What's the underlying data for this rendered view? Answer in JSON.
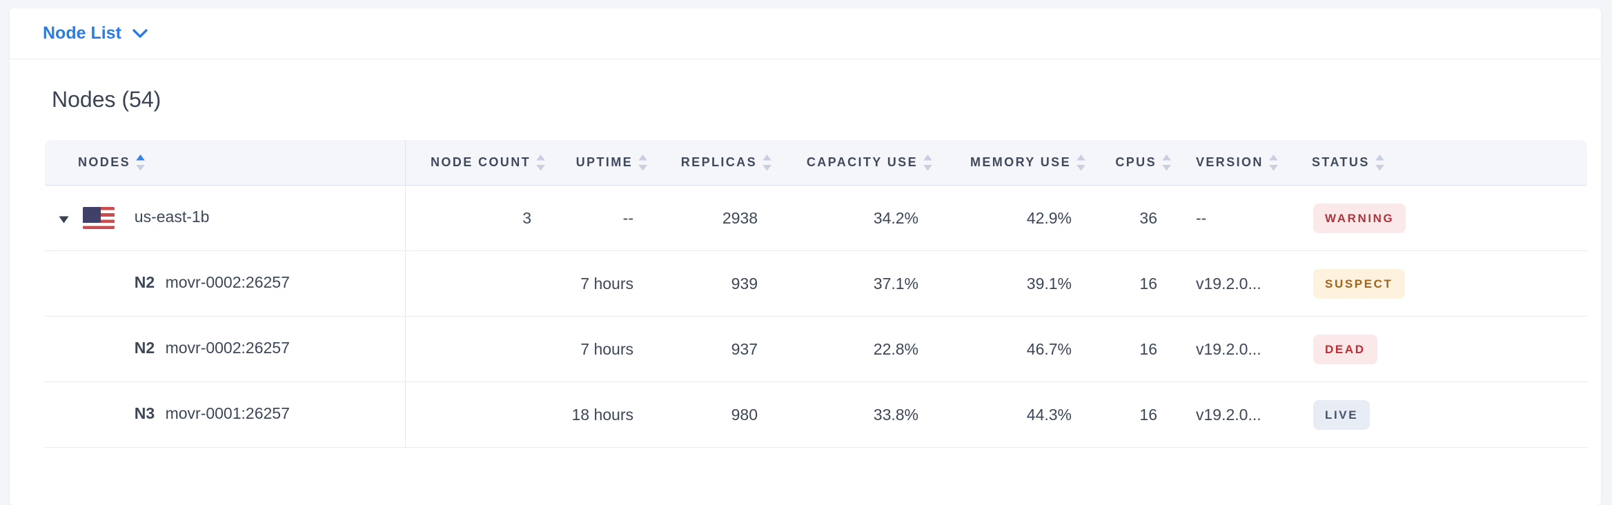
{
  "page": {
    "background": "#f3f5f9",
    "accent_blue": "#2b7ce2"
  },
  "topbar": {
    "view_selector_label": "Node List"
  },
  "main": {
    "heading": "Nodes (54)"
  },
  "table": {
    "columns": [
      {
        "key": "nodes",
        "label": "NODES",
        "align": "left",
        "sort_active": true
      },
      {
        "key": "node_count",
        "label": "NODE COUNT",
        "align": "right",
        "sort_active": false
      },
      {
        "key": "uptime",
        "label": "UPTIME",
        "align": "right",
        "sort_active": false
      },
      {
        "key": "replicas",
        "label": "REPLICAS",
        "align": "right",
        "sort_active": false
      },
      {
        "key": "capacity_use",
        "label": "CAPACITY USE",
        "align": "right",
        "sort_active": false
      },
      {
        "key": "memory_use",
        "label": "MEMORY USE",
        "align": "right",
        "sort_active": false
      },
      {
        "key": "cpus",
        "label": "CPUS",
        "align": "right",
        "sort_active": false
      },
      {
        "key": "version",
        "label": "VERSION",
        "align": "left",
        "sort_active": false
      },
      {
        "key": "status",
        "label": "STATUS",
        "align": "left",
        "sort_active": false
      }
    ],
    "rows": [
      {
        "type": "region",
        "id": "",
        "name": "us-east-1b",
        "flag": "us-flag",
        "node_count": "3",
        "uptime": "--",
        "replicas": "2938",
        "capacity_use": "34.2%",
        "memory_use": "42.9%",
        "cpus": "36",
        "version": "--",
        "status": {
          "label": "WARNING",
          "variant": "warning"
        }
      },
      {
        "type": "node",
        "id": "N2",
        "name": "movr-0002:26257",
        "flag": "",
        "node_count": "",
        "uptime": "7 hours",
        "replicas": "939",
        "capacity_use": "37.1%",
        "memory_use": "39.1%",
        "cpus": "16",
        "version": "v19.2.0...",
        "status": {
          "label": "SUSPECT",
          "variant": "suspect"
        }
      },
      {
        "type": "node",
        "id": "N2",
        "name": "movr-0002:26257",
        "flag": "",
        "node_count": "",
        "uptime": "7 hours",
        "replicas": "937",
        "capacity_use": "22.8%",
        "memory_use": "46.7%",
        "cpus": "16",
        "version": "v19.2.0...",
        "status": {
          "label": "DEAD",
          "variant": "dead"
        }
      },
      {
        "type": "node",
        "id": "N3",
        "name": "movr-0001:26257",
        "flag": "",
        "node_count": "",
        "uptime": "18 hours",
        "replicas": "980",
        "capacity_use": "33.8%",
        "memory_use": "44.3%",
        "cpus": "16",
        "version": "v19.2.0...",
        "status": {
          "label": "LIVE",
          "variant": "live"
        }
      }
    ],
    "badge_colors": {
      "warning": {
        "bg": "#fbe9e9",
        "text": "#ad353d"
      },
      "suspect": {
        "bg": "#fcf2dd",
        "text": "#a0621c"
      },
      "dead": {
        "bg": "#fbe9e9",
        "text": "#c32b33"
      },
      "live": {
        "bg": "#e8ecf4",
        "text": "#44526b"
      }
    }
  }
}
